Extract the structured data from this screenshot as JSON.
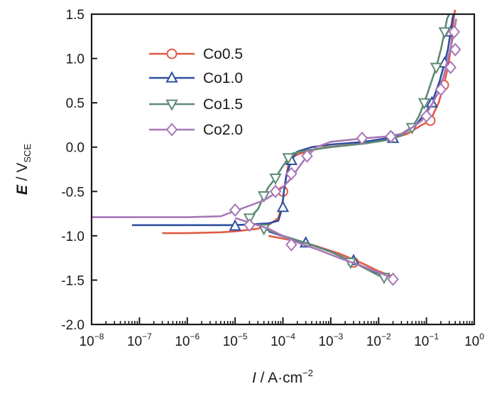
{
  "chart_data": {
    "type": "line",
    "x_scale": "log",
    "xlim": [
      1e-08,
      1
    ],
    "ylim": [
      -2.0,
      1.5
    ],
    "x_ticks": [
      {
        "base": "10",
        "exp": "−8"
      },
      {
        "base": "10",
        "exp": "−7"
      },
      {
        "base": "10",
        "exp": "−6"
      },
      {
        "base": "10",
        "exp": "−5"
      },
      {
        "base": "10",
        "exp": "−4"
      },
      {
        "base": "10",
        "exp": "−3"
      },
      {
        "base": "10",
        "exp": "−2"
      },
      {
        "base": "10",
        "exp": "−1"
      },
      {
        "base": "10",
        "exp": "0"
      }
    ],
    "y_ticks": [
      "-2.0",
      "-1.5",
      "-1.0",
      "-0.5",
      "0.0",
      "0.5",
      "1.0",
      "1.5"
    ],
    "xlabel": {
      "var": "I",
      "rest": " / A·cm",
      "sup": "−2"
    },
    "ylabel": {
      "var": "E",
      "rest": " / V",
      "sub": "SCE"
    },
    "legend_position": "top-left",
    "grid": false,
    "series": [
      {
        "name": "Co0.5",
        "color": "#e15a45",
        "marker": "circle",
        "x": [
          3e-07,
          1e-06,
          5e-06,
          1e-05,
          3e-05,
          5e-05,
          8e-05,
          0.0001,
          0.000105,
          0.000115,
          0.00013,
          0.00017,
          0.0003,
          0.0008,
          0.003,
          0.01,
          0.02,
          0.04,
          0.08,
          0.12,
          0.18,
          0.23,
          0.28,
          0.32,
          0.35,
          0.38,
          0.4
        ],
        "y": [
          -0.97,
          -0.97,
          -0.96,
          -0.95,
          -0.92,
          -0.88,
          -0.8,
          -0.6,
          -0.5,
          -0.35,
          -0.2,
          -0.1,
          -0.05,
          0.0,
          0.03,
          0.07,
          0.1,
          0.15,
          0.25,
          0.3,
          0.5,
          0.7,
          0.9,
          1.1,
          1.3,
          1.5,
          1.55
        ],
        "branch2_x": [
          5e-05,
          0.00015,
          0.0004,
          0.0015,
          0.005,
          0.01,
          0.018
        ],
        "branch2_y": [
          -1.0,
          -1.05,
          -1.1,
          -1.2,
          -1.32,
          -1.4,
          -1.45
        ],
        "markers": [
          [
            0.0001,
            -0.5
          ],
          [
            0.003,
            -1.3
          ],
          [
            0.12,
            0.3
          ],
          [
            0.23,
            0.7
          ],
          [
            0.35,
            1.3
          ]
        ]
      },
      {
        "name": "Co1.0",
        "color": "#2f4f9e",
        "marker": "triangle-up",
        "x": [
          7e-08,
          1e-06,
          1e-05,
          5e-05,
          8e-05,
          9.5e-05,
          0.000105,
          0.00012,
          0.00015,
          0.0002,
          0.0004,
          0.001,
          0.005,
          0.015,
          0.03,
          0.06,
          0.1,
          0.14,
          0.19,
          0.24,
          0.28,
          0.32,
          0.35,
          0.37
        ],
        "y": [
          -0.88,
          -0.88,
          -0.88,
          -0.86,
          -0.83,
          -0.7,
          -0.5,
          -0.3,
          -0.15,
          -0.05,
          0.0,
          0.03,
          0.06,
          0.1,
          0.15,
          0.25,
          0.4,
          0.55,
          0.75,
          0.95,
          1.1,
          1.3,
          1.45,
          1.5
        ],
        "branch2_x": [
          5e-05,
          0.00012,
          0.0003,
          0.001,
          0.003,
          0.008,
          0.014
        ],
        "branch2_y": [
          -0.95,
          -1.02,
          -1.08,
          -1.18,
          -1.3,
          -1.4,
          -1.45
        ],
        "markers": [
          [
            1e-05,
            -0.89
          ],
          [
            0.0001,
            -0.68
          ],
          [
            0.00015,
            -0.15
          ],
          [
            0.0003,
            -1.08
          ],
          [
            0.003,
            -1.28
          ],
          [
            0.02,
            0.1
          ],
          [
            0.13,
            0.5
          ],
          [
            0.24,
            0.95
          ],
          [
            0.32,
            1.3
          ]
        ]
      },
      {
        "name": "Co1.5",
        "color": "#5e8a75",
        "marker": "triangle-down",
        "x": [
          2e-05,
          3e-05,
          4e-05,
          5e-05,
          7e-05,
          9e-05,
          0.00011,
          0.00013,
          0.00016,
          0.0003,
          0.001,
          0.005,
          0.015,
          0.03,
          0.05,
          0.07,
          0.09,
          0.12,
          0.16,
          0.2,
          0.24,
          0.27,
          0.3
        ],
        "y": [
          -0.8,
          -0.7,
          -0.55,
          -0.45,
          -0.35,
          -0.25,
          -0.18,
          -0.12,
          -0.07,
          -0.04,
          0.0,
          0.04,
          0.08,
          0.13,
          0.22,
          0.35,
          0.5,
          0.7,
          0.9,
          1.1,
          1.3,
          1.45,
          1.5
        ],
        "branch2_x": [
          4e-05,
          0.0001,
          0.0003,
          0.001,
          0.003,
          0.008,
          0.013
        ],
        "branch2_y": [
          -0.92,
          -1.0,
          -1.08,
          -1.18,
          -1.3,
          -1.42,
          -1.48
        ],
        "markers": [
          [
            2e-05,
            -0.8
          ],
          [
            4e-05,
            -0.55
          ],
          [
            7e-05,
            -0.35
          ],
          [
            0.00013,
            -0.12
          ],
          [
            4e-05,
            -0.92
          ],
          [
            0.0026,
            -1.3
          ],
          [
            0.013,
            -1.47
          ],
          [
            0.05,
            0.22
          ],
          [
            0.09,
            0.5
          ],
          [
            0.16,
            0.9
          ],
          [
            0.24,
            1.3
          ]
        ]
      },
      {
        "name": "Co2.0",
        "color": "#a877b8",
        "marker": "diamond",
        "x": [
          1e-08,
          1e-07,
          1e-06,
          5e-06,
          1e-05,
          2e-05,
          4e-05,
          7e-05,
          0.0001,
          0.00015,
          0.0002,
          0.0003,
          0.0005,
          0.001,
          0.005,
          0.015,
          0.03,
          0.05,
          0.08,
          0.12,
          0.17,
          0.23,
          0.28,
          0.33,
          0.38,
          0.42
        ],
        "y": [
          -0.79,
          -0.79,
          -0.79,
          -0.78,
          -0.72,
          -0.66,
          -0.6,
          -0.52,
          -0.45,
          -0.35,
          -0.25,
          -0.12,
          0.0,
          0.06,
          0.1,
          0.12,
          0.15,
          0.22,
          0.3,
          0.45,
          0.6,
          0.8,
          1.0,
          1.15,
          1.3,
          1.45
        ],
        "branch2_x": [
          1e-05,
          5e-05,
          0.00015,
          0.0005,
          0.0015,
          0.005,
          0.012,
          0.02
        ],
        "branch2_y": [
          -0.8,
          -0.92,
          -1.05,
          -1.15,
          -1.25,
          -1.35,
          -1.43,
          -1.48
        ],
        "markers": [
          [
            1e-05,
            -0.71
          ],
          [
            2e-05,
            -0.88
          ],
          [
            7e-05,
            -0.5
          ],
          [
            0.00015,
            -0.3
          ],
          [
            0.00015,
            -1.1
          ],
          [
            0.00032,
            -0.1
          ],
          [
            0.0045,
            0.1
          ],
          [
            0.018,
            0.12
          ],
          [
            0.1,
            0.35
          ],
          [
            0.2,
            0.65
          ],
          [
            0.32,
            0.9
          ],
          [
            0.4,
            1.1
          ],
          [
            0.38,
            1.3
          ],
          [
            0.02,
            -1.49
          ]
        ]
      }
    ]
  }
}
